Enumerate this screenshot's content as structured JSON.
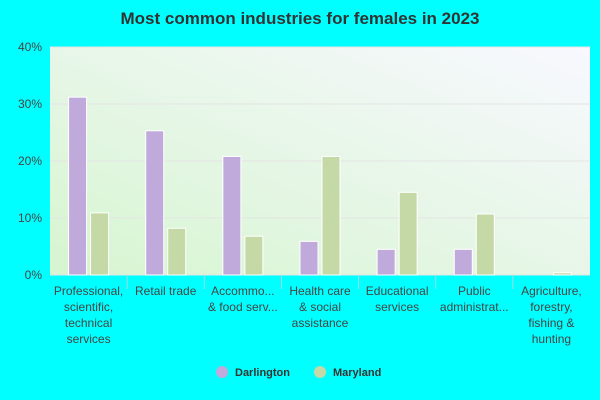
{
  "chart_data": {
    "type": "bar",
    "title": "Most common industries for females in 2023",
    "categories": [
      "Professional,\nscientific,\ntechnical\nservices",
      "Retail trade",
      "Accommo...\n& food serv...",
      "Health care\n& social\nassistance",
      "Educational\nservices",
      "Public\nadministrat...",
      "Agriculture,\nforestry,\nfishing &\nhunting"
    ],
    "series": [
      {
        "name": "Darlington",
        "color": "#c0a9db",
        "values": [
          31.2,
          25.3,
          20.8,
          5.9,
          4.5,
          4.5,
          0
        ]
      },
      {
        "name": "Maryland",
        "color": "#c5d9a7",
        "values": [
          10.9,
          8.2,
          6.8,
          20.8,
          14.5,
          10.7,
          0.4
        ]
      }
    ],
    "ylim": [
      0,
      40
    ],
    "yticks": [
      {
        "value": 0,
        "label": "0%"
      },
      {
        "value": 10,
        "label": "10%"
      },
      {
        "value": 20,
        "label": "20%"
      },
      {
        "value": 30,
        "label": "30%"
      },
      {
        "value": 40,
        "label": "40%"
      }
    ],
    "grid": true
  }
}
